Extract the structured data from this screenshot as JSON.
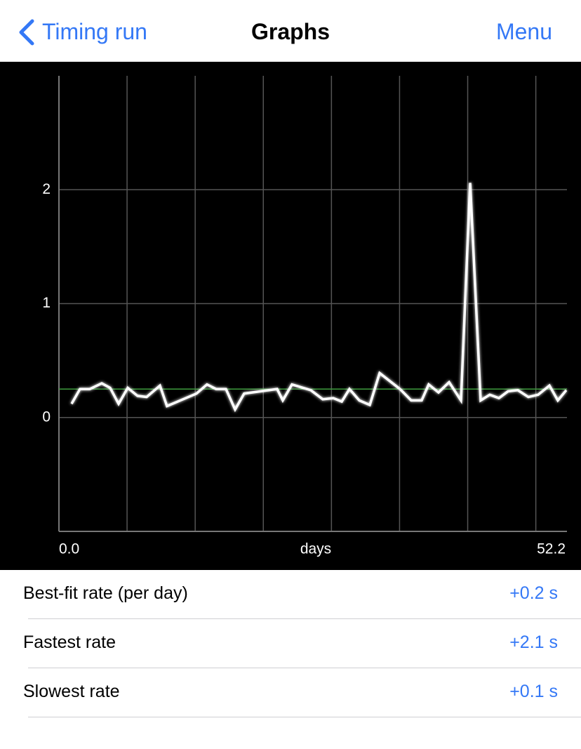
{
  "nav": {
    "back": "Timing run",
    "title": "Graphs",
    "menu": "Menu"
  },
  "chart_data": {
    "type": "line",
    "x_label": "days",
    "x": [
      1.3,
      2.16,
      3.17,
      4.4,
      5.26,
      6.13,
      7.07,
      8.07,
      9.01,
      10.38,
      11.1,
      14.13,
      15.21,
      16.15,
      17.16,
      18.1,
      19.03,
      22.42,
      23.0,
      23.94,
      25.88,
      27.11,
      28.19,
      29.06,
      29.85,
      30.86,
      31.94,
      32.95,
      35.04,
      36.19,
      37.27,
      37.99,
      39.0,
      40.09,
      41.31,
      42.25,
      43.33,
      44.27,
      45.21,
      46.14,
      47.15,
      48.23,
      49.24,
      50.4,
      51.26,
      52.13
    ],
    "values": [
      0.12,
      0.25,
      0.25,
      0.3,
      0.26,
      0.12,
      0.26,
      0.19,
      0.18,
      0.28,
      0.1,
      0.21,
      0.29,
      0.25,
      0.25,
      0.07,
      0.21,
      0.25,
      0.15,
      0.29,
      0.24,
      0.16,
      0.17,
      0.14,
      0.25,
      0.15,
      0.11,
      0.39,
      0.25,
      0.15,
      0.15,
      0.29,
      0.22,
      0.31,
      0.15,
      2.06,
      0.15,
      0.2,
      0.17,
      0.23,
      0.24,
      0.18,
      0.2,
      0.28,
      0.15,
      0.24
    ],
    "color": "#ffffff",
    "xlim": [
      0,
      52.2
    ],
    "ylim": [
      -1,
      3
    ],
    "xticks": [
      {
        "value": 0,
        "label": "0.0"
      },
      {
        "value": 52.2,
        "label": "52.2"
      }
    ],
    "xgrid": [
      7,
      14,
      21,
      28,
      35,
      42,
      49
    ],
    "yticks": [
      0,
      1,
      2
    ],
    "fit_line": {
      "value": 0.25,
      "color": "#3e9c3e"
    },
    "grid": true
  },
  "stats": {
    "rows": [
      {
        "label": "Best-fit rate (per day)",
        "value": "+0.2 s"
      },
      {
        "label": "Fastest rate",
        "value": "+2.1 s"
      },
      {
        "label": "Slowest rate",
        "value": "+0.1 s"
      }
    ]
  }
}
